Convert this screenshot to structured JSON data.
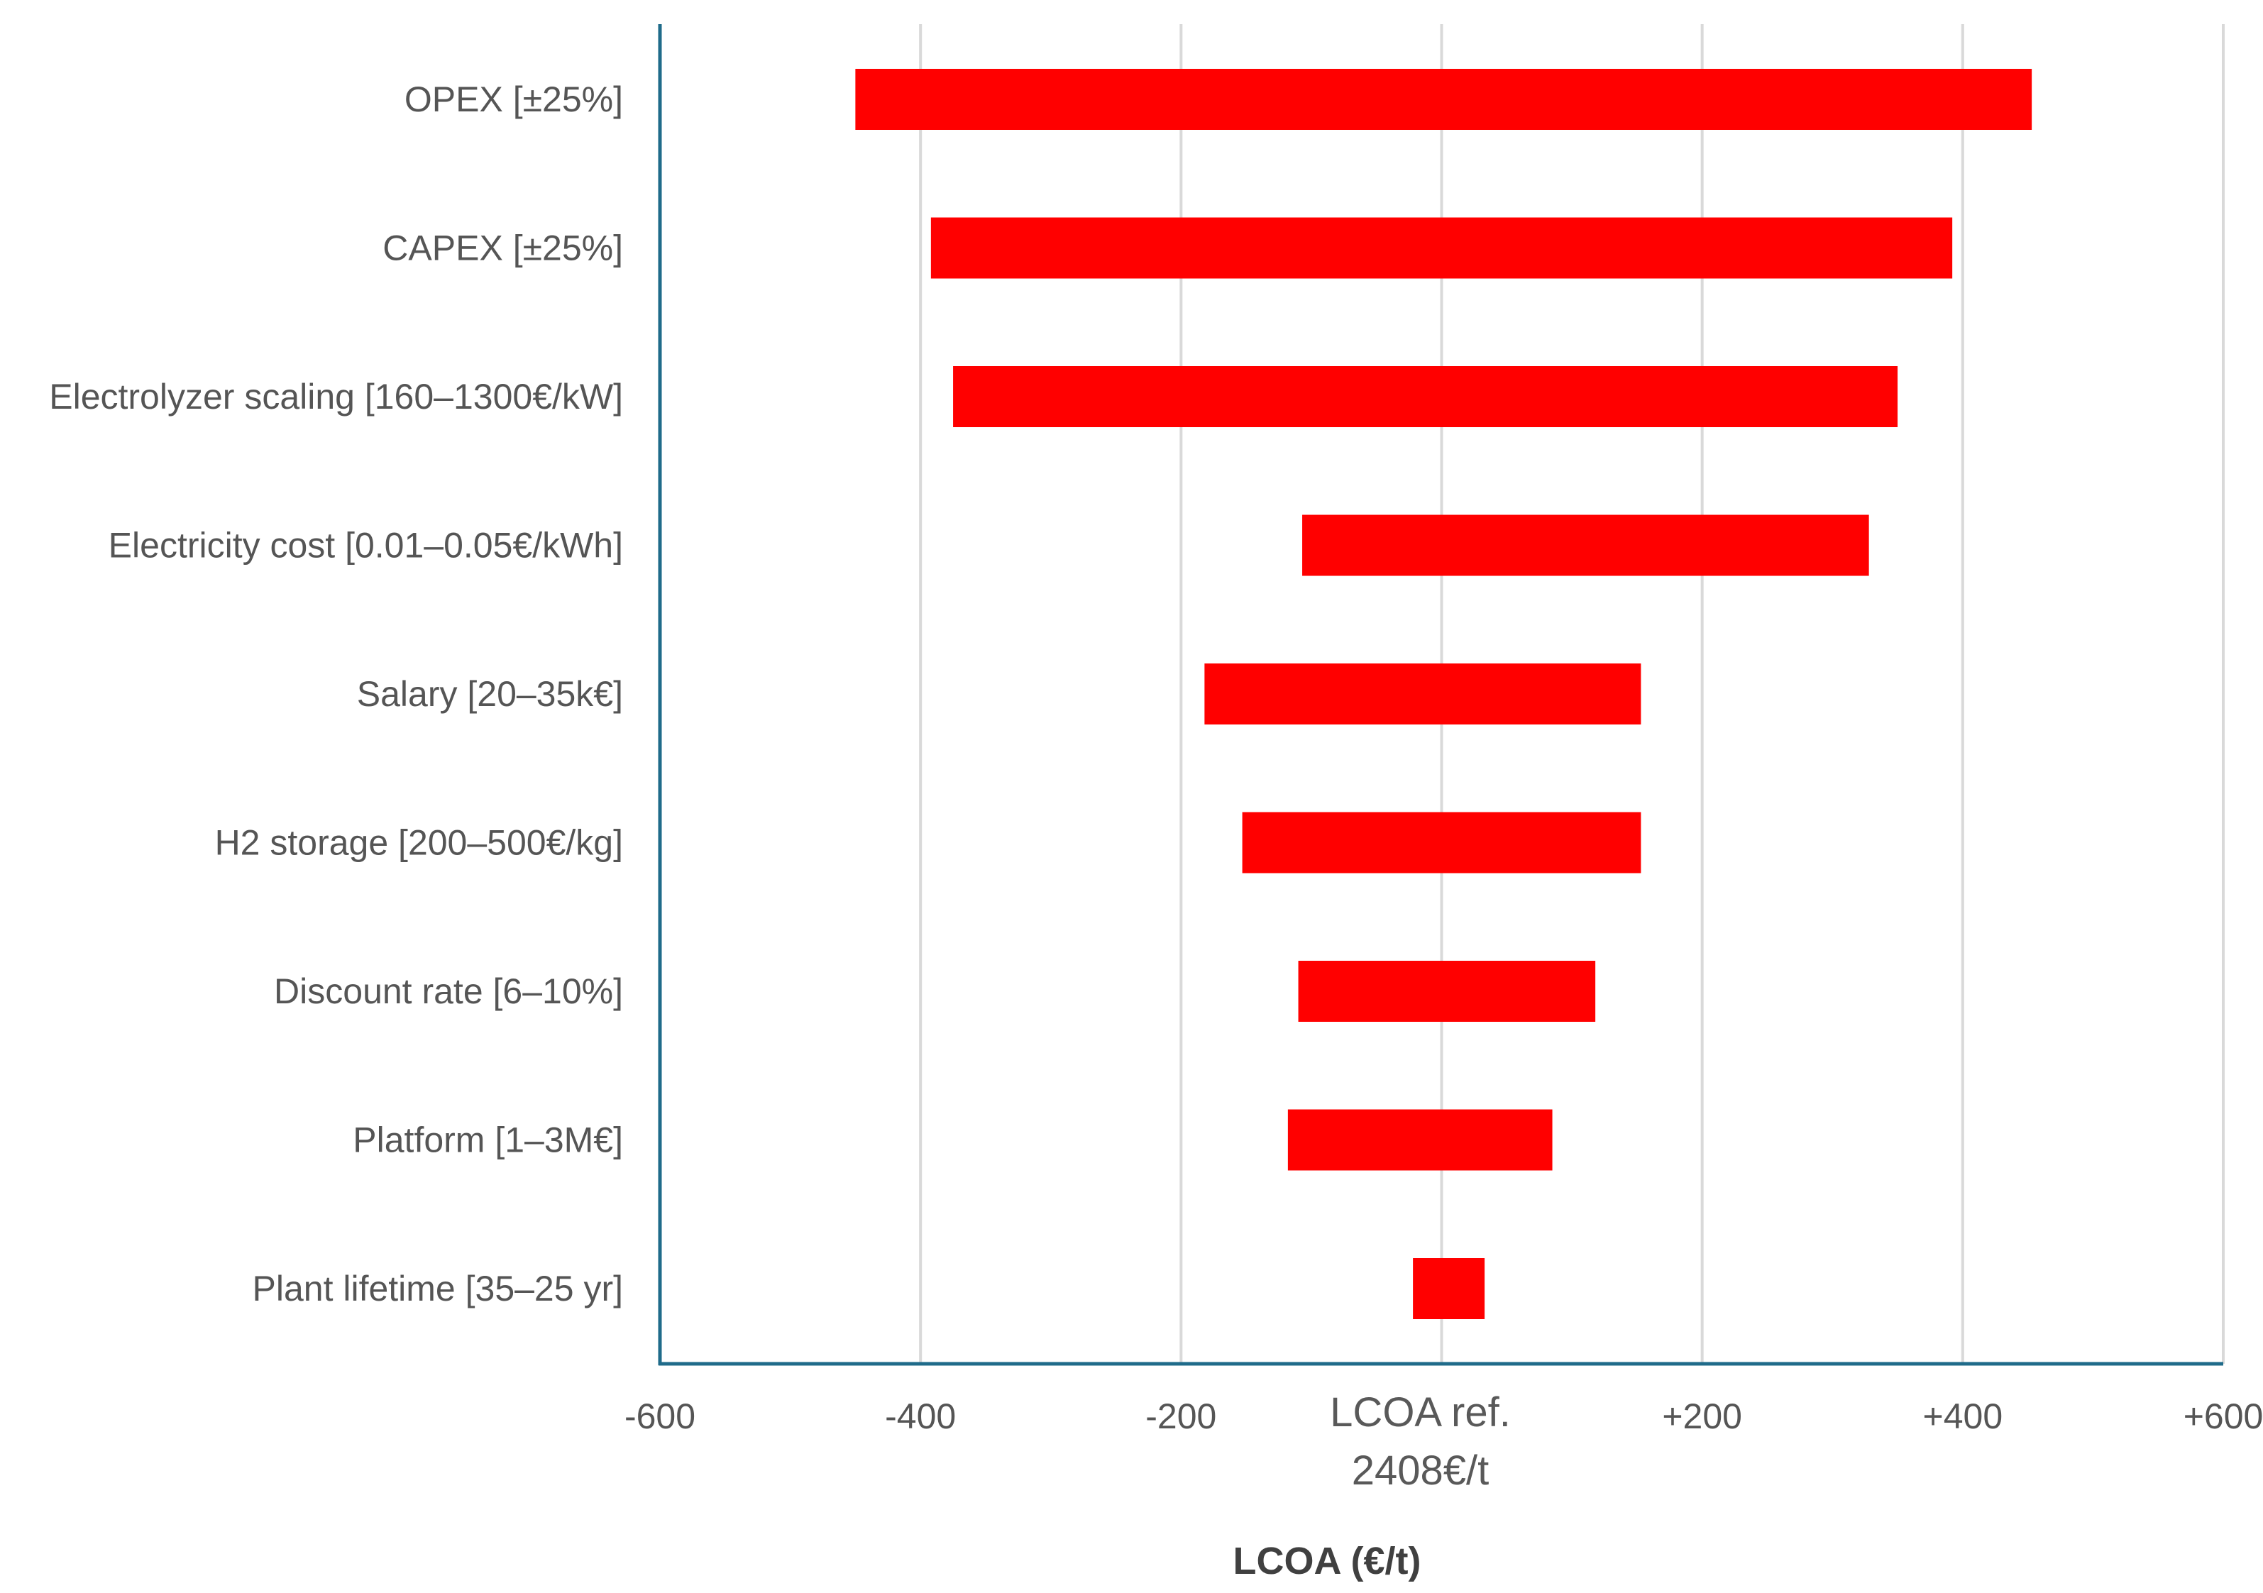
{
  "chart_data": {
    "type": "bar",
    "orientation": "horizontal-tornado",
    "categories": [
      "OPEX [±25%]",
      "CAPEX [±25%]",
      "Electrolyzer scaling [160–1300€/kW]",
      "Electricity cost [0.01–0.05€/kWh]",
      "Salary [20–35k€]",
      "H2 storage [200–500€/kg]",
      "Discount rate [6–10%]",
      "Platform [1–3M€]",
      "Plant lifetime [35–25 yr]"
    ],
    "series": [
      {
        "low": [
          -450,
          -392,
          -375,
          -107,
          -182,
          -153,
          -110,
          -118,
          -22
        ],
        "high": [
          453,
          392,
          350,
          328,
          153,
          153,
          118,
          85,
          33
        ]
      }
    ],
    "xlim": [
      -600,
      600
    ],
    "xticks": [
      {
        "value": -600,
        "label": "-600"
      },
      {
        "value": -400,
        "label": "-400"
      },
      {
        "value": -200,
        "label": "-200"
      },
      {
        "value": 200,
        "label": "+200"
      },
      {
        "value": 400,
        "label": "+400"
      },
      {
        "value": 600,
        "label": "+600"
      }
    ],
    "reference_label": [
      "LCOA ref.",
      "2408€/t"
    ],
    "xlabel": "LCOA (€/t)",
    "bar_color": "#ff0000",
    "axis_color": "#1f6b8a",
    "grid": true
  }
}
